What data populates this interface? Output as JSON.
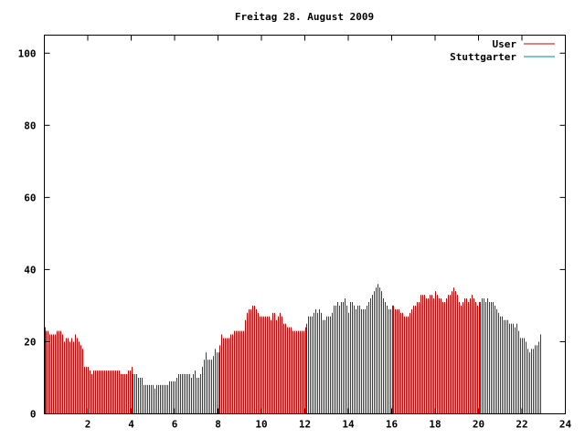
{
  "chart_data": {
    "type": "bar",
    "title": "Freitag 28. August 2009",
    "xlabel": "",
    "ylabel": "",
    "xlim": [
      0,
      24
    ],
    "ylim": [
      0,
      105
    ],
    "x_ticks": [
      "2",
      "4",
      "6",
      "8",
      "10",
      "12",
      "14",
      "16",
      "18",
      "20",
      "22",
      "24"
    ],
    "y_ticks": [
      "0",
      "20",
      "40",
      "60",
      "80",
      "100"
    ],
    "legend": {
      "placement": "top-right"
    },
    "grid": false,
    "series": [
      {
        "name": "User",
        "color": "#cc0000",
        "style": "impulses",
        "bin_minutes": 5,
        "values": [
          24,
          23,
          23,
          22,
          22,
          22,
          22,
          23,
          23,
          23,
          22,
          20,
          21,
          21,
          20,
          21,
          20,
          22,
          21,
          20,
          19,
          18,
          13,
          13,
          13,
          12,
          11,
          12,
          12,
          12,
          12,
          12,
          12,
          12,
          12,
          12,
          12,
          12,
          12,
          12,
          12,
          12,
          11,
          11,
          11,
          11,
          12,
          12,
          13,
          11,
          11,
          11,
          10,
          10,
          10,
          8,
          8,
          8,
          8,
          8,
          8,
          7,
          8,
          8,
          8,
          8,
          8,
          8,
          8,
          9,
          9,
          9,
          9,
          10,
          11,
          11,
          11,
          11,
          11,
          11,
          11,
          10,
          11,
          12,
          10,
          10,
          11,
          13,
          15,
          17,
          15,
          15,
          15,
          16,
          18,
          17,
          17,
          19,
          22,
          21,
          21,
          21,
          21,
          22,
          22,
          23,
          23,
          23,
          23,
          23,
          23,
          26,
          28,
          29,
          29,
          30,
          30,
          29,
          28,
          27,
          27,
          27,
          27,
          27,
          27,
          26,
          28,
          28,
          26,
          27,
          28,
          27,
          25,
          25,
          24,
          24,
          24,
          23,
          23,
          23,
          23,
          23,
          23,
          23,
          24,
          25,
          27,
          27,
          27,
          28,
          29,
          28,
          29,
          28,
          26,
          26,
          27,
          27,
          27,
          28,
          30,
          30,
          31,
          30,
          31,
          31,
          32,
          30,
          28,
          31,
          31,
          30,
          29,
          30,
          30,
          29,
          29,
          29,
          30,
          31,
          32,
          33,
          34,
          35,
          36,
          35,
          34,
          32,
          31,
          30,
          29,
          29,
          30,
          30,
          29,
          29,
          29,
          28,
          28,
          27,
          27,
          27,
          28,
          29,
          30,
          30,
          31,
          31,
          33,
          33,
          33,
          32,
          32,
          33,
          33,
          32,
          34,
          33,
          32,
          32,
          31,
          31,
          32,
          33,
          33,
          34,
          35,
          34,
          33,
          31,
          30,
          31,
          32,
          32,
          31,
          32,
          33,
          32,
          31,
          30,
          31,
          31,
          32,
          32,
          31,
          32,
          31,
          31,
          31,
          30,
          29,
          28,
          27,
          27,
          26,
          26,
          26,
          25,
          25,
          25,
          24,
          25,
          23,
          21,
          21,
          21,
          20,
          18,
          17,
          18,
          18,
          19,
          19,
          20,
          22
        ]
      },
      {
        "name": "Stuttgarter",
        "color": "#008b8b",
        "style": "line",
        "values": []
      }
    ]
  }
}
